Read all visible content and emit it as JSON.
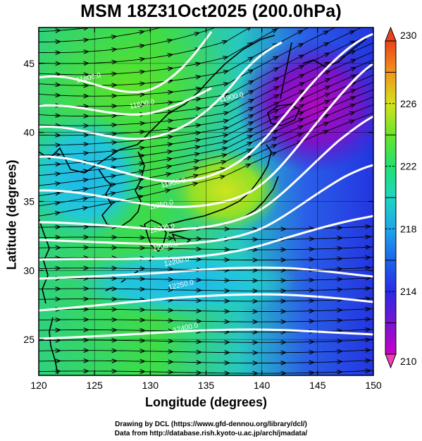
{
  "title": "MSM 18Z31Oct2025 (200.0hPa)",
  "xlabel": "Longitude (degrees)",
  "ylabel": "Latitude  (degrees)",
  "credits": [
    "Drawing by DCL (https://www.gfd-dennou.org/library/dcl/)",
    "Data from http://database.rish.kyoto-u.ac.jp/arch/jmadata/"
  ],
  "map": {
    "lon_range": [
      120,
      150
    ],
    "lat_range": [
      22.4,
      47.6
    ],
    "lon_ticks": [
      "120",
      "125",
      "130",
      "135",
      "140",
      "145",
      "150"
    ],
    "lat_ticks": [
      "25",
      "30",
      "35",
      "40",
      "45"
    ],
    "field": "temperature",
    "colorbar": {
      "range": [
        210,
        230
      ],
      "labels": [
        "210",
        "214",
        "218",
        "222",
        "226",
        "230"
      ],
      "colors": [
        "#c200c8",
        "#5a10d4",
        "#1a3ae6",
        "#1faeea",
        "#1fd6b4",
        "#27e05a",
        "#8ae624",
        "#e2e01c",
        "#f2a81c",
        "#f26a1c",
        "#e8401a"
      ]
    },
    "contour_labels": [
      {
        "text": "11800.0",
        "lon": 124.5,
        "lat": 43.8
      },
      {
        "text": "11800.0",
        "lon": 129.3,
        "lat": 41.9
      },
      {
        "text": "11900.0",
        "lon": 137.3,
        "lat": 42.4
      },
      {
        "text": "11900.0",
        "lon": 132.1,
        "lat": 36.2
      },
      {
        "text": "11950.0",
        "lon": 131.0,
        "lat": 34.6
      },
      {
        "text": "12000.0",
        "lon": 131.1,
        "lat": 32.9
      },
      {
        "text": "12050.0",
        "lon": 131.4,
        "lat": 31.6
      },
      {
        "text": "12200.0",
        "lon": 132.4,
        "lat": 30.5
      },
      {
        "text": "12250.0",
        "lon": 132.8,
        "lat": 28.8
      },
      {
        "text": "12400.0",
        "lon": 133.2,
        "lat": 25.7
      }
    ]
  }
}
